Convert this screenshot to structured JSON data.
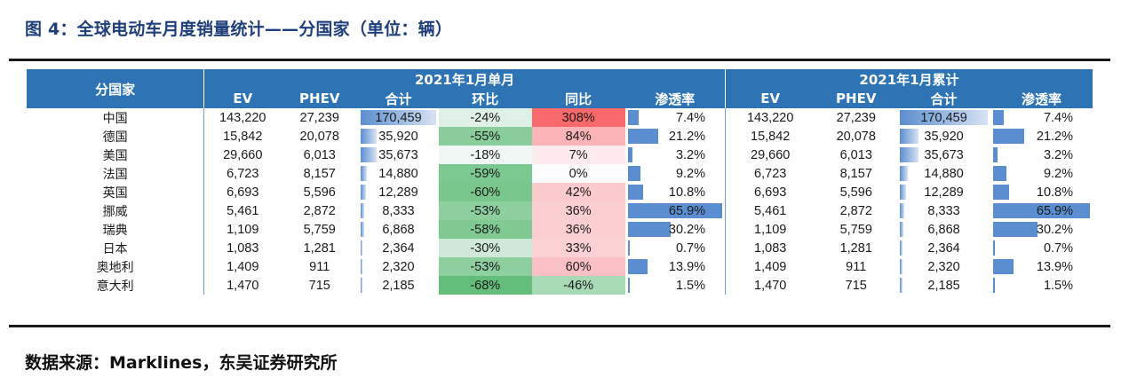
{
  "title": "图 4：全球电动车月度销量统计——分国家（单位：辆）",
  "source": "数据来源：Marklines，东吴证券研究所",
  "header": {
    "country": "分国家",
    "group_month": "2021年1月单月",
    "group_cum": "2021年1月累计",
    "cols_month": [
      "EV",
      "PHEV",
      "合计",
      "环比",
      "同比",
      "渗透率"
    ],
    "cols_cum": [
      "EV",
      "PHEV",
      "合计",
      "渗透率"
    ]
  },
  "colors": {
    "header_bg": "#2e74b5",
    "bar_blue": "#5b8ed0",
    "green": "#63be7b",
    "red": "#f8696b"
  },
  "rows": [
    {
      "country": "中国",
      "ev": "143,220",
      "phev": "27,239",
      "total": "170,459",
      "total_num": 170459,
      "mom": "-24%",
      "mom_num": -24,
      "yoy": "308%",
      "yoy_num": 308,
      "pen": "7.4%",
      "pen_num": 7.4,
      "cum_ev": "143,220",
      "cum_phev": "27,239",
      "cum_total": "170,459",
      "cum_total_num": 170459,
      "cum_pen": "7.4%",
      "cum_pen_num": 7.4
    },
    {
      "country": "德国",
      "ev": "15,842",
      "phev": "20,078",
      "total": "35,920",
      "total_num": 35920,
      "mom": "-55%",
      "mom_num": -55,
      "yoy": "84%",
      "yoy_num": 84,
      "pen": "21.2%",
      "pen_num": 21.2,
      "cum_ev": "15,842",
      "cum_phev": "20,078",
      "cum_total": "35,920",
      "cum_total_num": 35920,
      "cum_pen": "21.2%",
      "cum_pen_num": 21.2
    },
    {
      "country": "美国",
      "ev": "29,660",
      "phev": "6,013",
      "total": "35,673",
      "total_num": 35673,
      "mom": "-18%",
      "mom_num": -18,
      "yoy": "7%",
      "yoy_num": 7,
      "pen": "3.2%",
      "pen_num": 3.2,
      "cum_ev": "29,660",
      "cum_phev": "6,013",
      "cum_total": "35,673",
      "cum_total_num": 35673,
      "cum_pen": "3.2%",
      "cum_pen_num": 3.2
    },
    {
      "country": "法国",
      "ev": "6,723",
      "phev": "8,157",
      "total": "14,880",
      "total_num": 14880,
      "mom": "-59%",
      "mom_num": -59,
      "yoy": "0%",
      "yoy_num": 0,
      "pen": "9.2%",
      "pen_num": 9.2,
      "cum_ev": "6,723",
      "cum_phev": "8,157",
      "cum_total": "14,880",
      "cum_total_num": 14880,
      "cum_pen": "9.2%",
      "cum_pen_num": 9.2
    },
    {
      "country": "英国",
      "ev": "6,693",
      "phev": "5,596",
      "total": "12,289",
      "total_num": 12289,
      "mom": "-60%",
      "mom_num": -60,
      "yoy": "42%",
      "yoy_num": 42,
      "pen": "10.8%",
      "pen_num": 10.8,
      "cum_ev": "6,693",
      "cum_phev": "5,596",
      "cum_total": "12,289",
      "cum_total_num": 12289,
      "cum_pen": "10.8%",
      "cum_pen_num": 10.8
    },
    {
      "country": "挪威",
      "ev": "5,461",
      "phev": "2,872",
      "total": "8,333",
      "total_num": 8333,
      "mom": "-53%",
      "mom_num": -53,
      "yoy": "36%",
      "yoy_num": 36,
      "pen": "65.9%",
      "pen_num": 65.9,
      "cum_ev": "5,461",
      "cum_phev": "2,872",
      "cum_total": "8,333",
      "cum_total_num": 8333,
      "cum_pen": "65.9%",
      "cum_pen_num": 65.9
    },
    {
      "country": "瑞典",
      "ev": "1,109",
      "phev": "5,759",
      "total": "6,868",
      "total_num": 6868,
      "mom": "-58%",
      "mom_num": -58,
      "yoy": "36%",
      "yoy_num": 36,
      "pen": "30.2%",
      "pen_num": 30.2,
      "cum_ev": "1,109",
      "cum_phev": "5,759",
      "cum_total": "6,868",
      "cum_total_num": 6868,
      "cum_pen": "30.2%",
      "cum_pen_num": 30.2
    },
    {
      "country": "日本",
      "ev": "1,083",
      "phev": "1,281",
      "total": "2,364",
      "total_num": 2364,
      "mom": "-30%",
      "mom_num": -30,
      "yoy": "33%",
      "yoy_num": 33,
      "pen": "0.7%",
      "pen_num": 0.7,
      "cum_ev": "1,083",
      "cum_phev": "1,281",
      "cum_total": "2,364",
      "cum_total_num": 2364,
      "cum_pen": "0.7%",
      "cum_pen_num": 0.7
    },
    {
      "country": "奥地利",
      "ev": "1,409",
      "phev": "911",
      "total": "2,320",
      "total_num": 2320,
      "mom": "-53%",
      "mom_num": -53,
      "yoy": "60%",
      "yoy_num": 60,
      "pen": "13.9%",
      "pen_num": 13.9,
      "cum_ev": "1,409",
      "cum_phev": "911",
      "cum_total": "2,320",
      "cum_total_num": 2320,
      "cum_pen": "13.9%",
      "cum_pen_num": 13.9
    },
    {
      "country": "意大利",
      "ev": "1,470",
      "phev": "715",
      "total": "2,185",
      "total_num": 2185,
      "mom": "-68%",
      "mom_num": -68,
      "yoy": "-46%",
      "yoy_num": -46,
      "pen": "1.5%",
      "pen_num": 1.5,
      "cum_ev": "1,470",
      "cum_phev": "715",
      "cum_total": "2,185",
      "cum_total_num": 2185,
      "cum_pen": "1.5%",
      "cum_pen_num": 1.5
    }
  ]
}
